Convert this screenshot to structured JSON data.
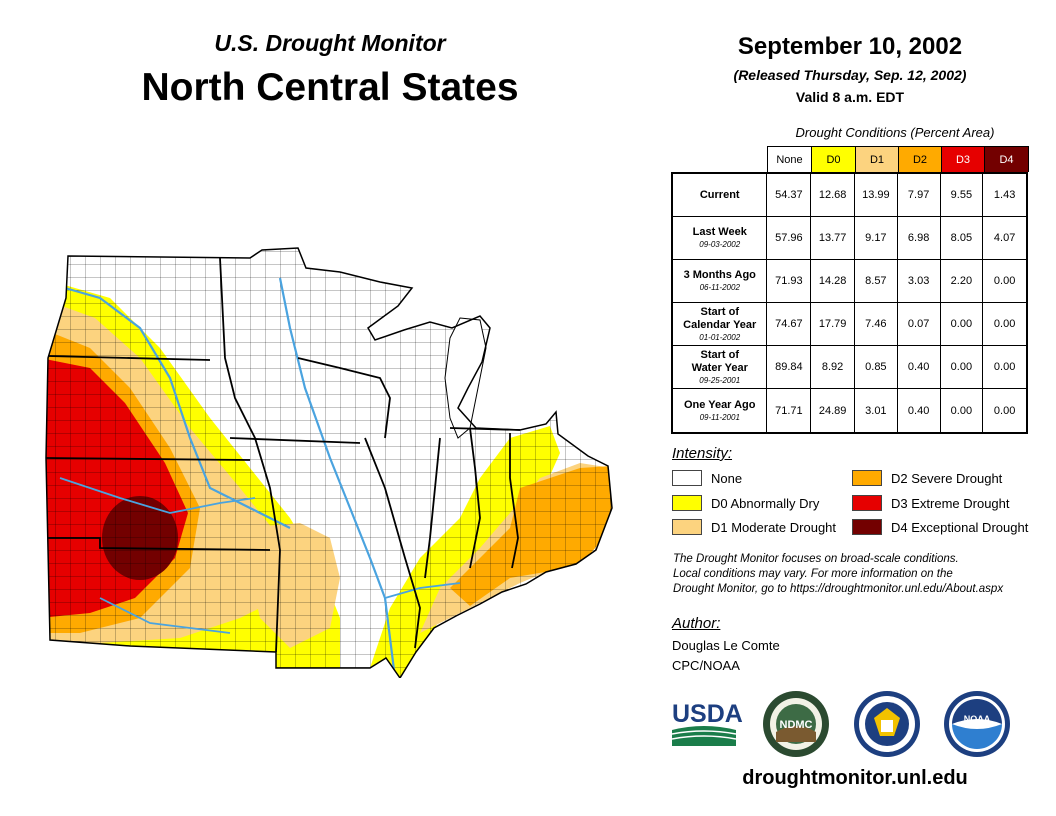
{
  "header": {
    "subtitle": "U.S. Drought Monitor",
    "title": "North Central States",
    "date": "September 10, 2002",
    "released": "(Released Thursday, Sep. 12, 2002)",
    "valid": "Valid 8 a.m. EDT"
  },
  "table": {
    "caption": "Drought Conditions (Percent Area)",
    "columns": [
      {
        "label": "None",
        "color": "#ffffff",
        "text_color": "#000000"
      },
      {
        "label": "D0",
        "color": "#ffff00",
        "text_color": "#000000"
      },
      {
        "label": "D1",
        "color": "#fcd37f",
        "text_color": "#000000"
      },
      {
        "label": "D2",
        "color": "#ffaa00",
        "text_color": "#000000"
      },
      {
        "label": "D3",
        "color": "#e60000",
        "text_color": "#ffffff"
      },
      {
        "label": "D4",
        "color": "#730000",
        "text_color": "#ffffff"
      }
    ],
    "rows": [
      {
        "label": [
          "Current"
        ],
        "date": "",
        "values": [
          "54.37",
          "12.68",
          "13.99",
          "7.97",
          "9.55",
          "1.43"
        ]
      },
      {
        "label": [
          "Last Week"
        ],
        "date": "09-03-2002",
        "values": [
          "57.96",
          "13.77",
          "9.17",
          "6.98",
          "8.05",
          "4.07"
        ]
      },
      {
        "label": [
          "3 Months Ago"
        ],
        "date": "06-11-2002",
        "values": [
          "71.93",
          "14.28",
          "8.57",
          "3.03",
          "2.20",
          "0.00"
        ]
      },
      {
        "label": [
          "Start of",
          "Calendar Year"
        ],
        "date": "01-01-2002",
        "values": [
          "74.67",
          "17.79",
          "7.46",
          "0.07",
          "0.00",
          "0.00"
        ]
      },
      {
        "label": [
          "Start of",
          "Water Year"
        ],
        "date": "09-25-2001",
        "values": [
          "89.84",
          "8.92",
          "0.85",
          "0.40",
          "0.00",
          "0.00"
        ]
      },
      {
        "label": [
          "One Year Ago"
        ],
        "date": "09-11-2001",
        "values": [
          "71.71",
          "24.89",
          "3.01",
          "0.40",
          "0.00",
          "0.00"
        ]
      }
    ]
  },
  "legend": {
    "title": "Intensity:",
    "items": [
      {
        "label": "None",
        "color": "#ffffff"
      },
      {
        "label": "D0 Abnormally Dry",
        "color": "#ffff00"
      },
      {
        "label": "D1 Moderate Drought",
        "color": "#fcd37f"
      },
      {
        "label": "D2 Severe Drought",
        "color": "#ffaa00"
      },
      {
        "label": "D3 Extreme Drought",
        "color": "#e60000"
      },
      {
        "label": "D4 Exceptional Drought",
        "color": "#730000"
      }
    ]
  },
  "note": [
    "The Drought Monitor focuses on broad-scale conditions.",
    "Local conditions may vary. For more information on the",
    "Drought Monitor, go to https://droughtmonitor.unl.edu/About.aspx"
  ],
  "author": {
    "title": "Author:",
    "name": "Douglas Le Comte",
    "org": "CPC/NOAA"
  },
  "logos": {
    "usda": "USDA",
    "ndmc": "NDMC",
    "noaa": "NOAA"
  },
  "url": "droughtmonitor.unl.edu",
  "colors": {
    "none": "#ffffff",
    "d0": "#ffff00",
    "d1": "#fcd37f",
    "d2": "#ffaa00",
    "d3": "#e60000",
    "d4": "#730000",
    "water": "#4aa3df"
  }
}
